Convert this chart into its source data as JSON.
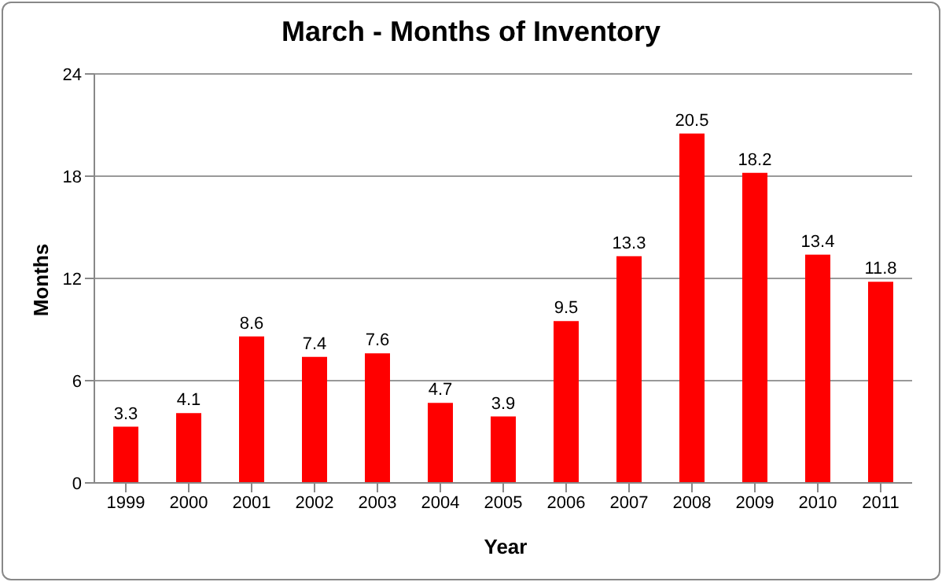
{
  "chart_data": {
    "type": "bar",
    "title": "March - Months of Inventory",
    "xlabel": "Year",
    "ylabel": "Months",
    "categories": [
      "1999",
      "2000",
      "2001",
      "2002",
      "2003",
      "2004",
      "2005",
      "2006",
      "2007",
      "2008",
      "2009",
      "2010",
      "2011"
    ],
    "values": [
      3.3,
      4.1,
      8.6,
      7.4,
      7.6,
      4.7,
      3.9,
      9.5,
      13.3,
      20.5,
      18.2,
      13.4,
      11.8
    ],
    "color": "#ff0000",
    "ylim": [
      0,
      24
    ],
    "yticks": [
      0,
      6,
      12,
      18,
      24
    ],
    "grid": "y",
    "data_labels": true
  }
}
